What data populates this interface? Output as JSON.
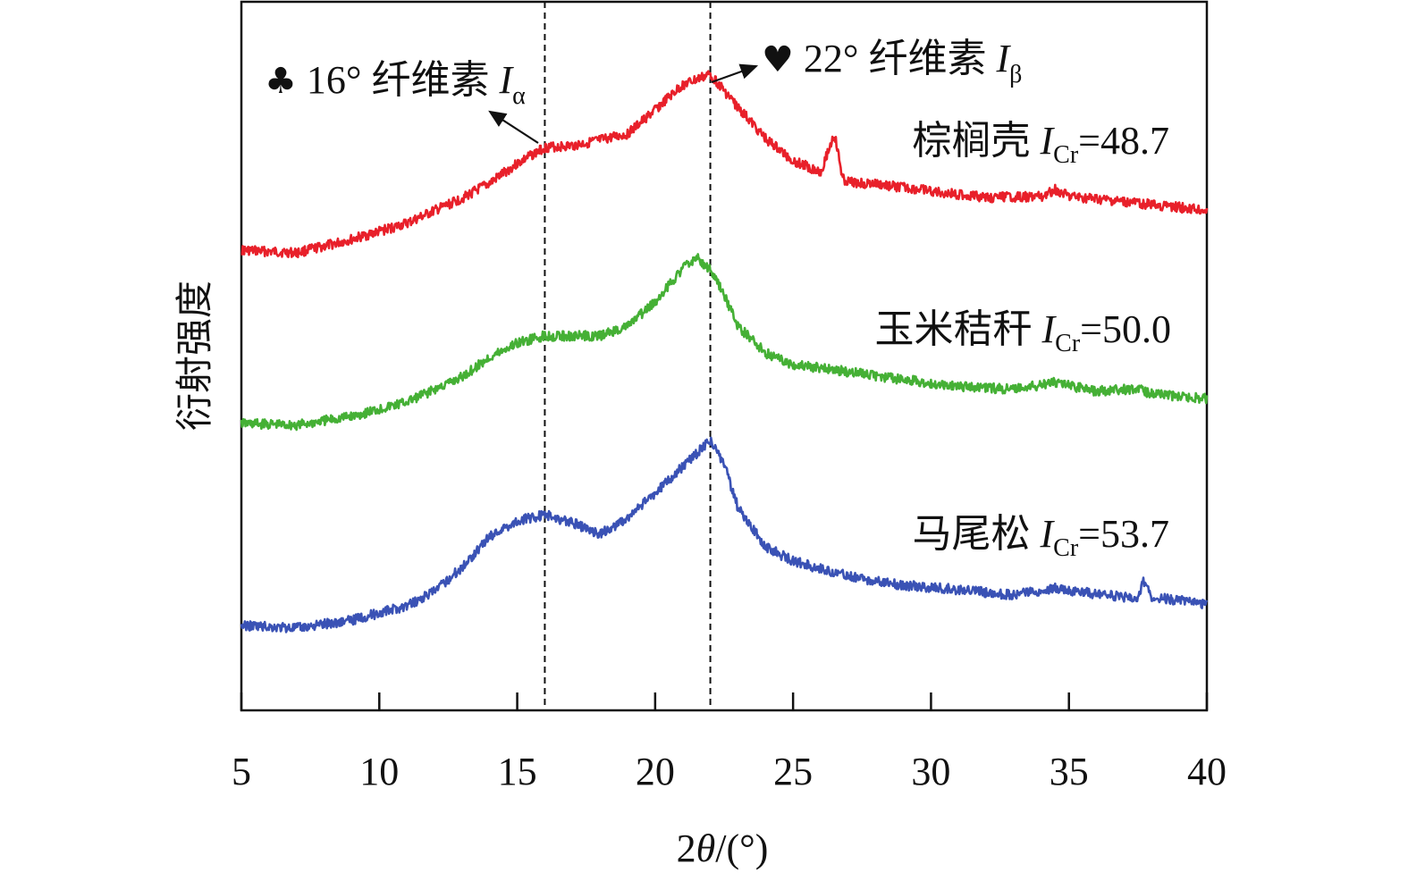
{
  "chart_data": {
    "type": "line",
    "xlabel_prefix": "2",
    "xlabel_var": "θ",
    "xlabel_suffix": "/(°)",
    "ylabel": "衍射强度",
    "xlim": [
      5,
      40
    ],
    "x_ticks": [
      "5",
      "10",
      "15",
      "20",
      "25",
      "30",
      "35",
      "40"
    ],
    "y_ticks_shown": false,
    "grid": false,
    "legend": "inline labels at right of each curve",
    "reference_lines_x": [
      16,
      22
    ],
    "annotations": [
      {
        "symbol": "♣",
        "text": "16° 纤维素 ",
        "var": "I",
        "sub": "α",
        "points_to_x": 16
      },
      {
        "symbol": "♥",
        "text": "22° 纤维素 ",
        "var": "I",
        "sub": "β",
        "points_to_x": 22
      }
    ],
    "series": [
      {
        "name": "棕榈壳",
        "index_var": "I",
        "index_sub": "Cr",
        "index_value": "=48.7",
        "color": "#e8202a",
        "points": [
          [
            5,
            280
          ],
          [
            7,
            283
          ],
          [
            9,
            268
          ],
          [
            11,
            250
          ],
          [
            13,
            222
          ],
          [
            14,
            205
          ],
          [
            15,
            183
          ],
          [
            16,
            165
          ],
          [
            17,
            163
          ],
          [
            18,
            157
          ],
          [
            19,
            150
          ],
          [
            20,
            123
          ],
          [
            21,
            95
          ],
          [
            22,
            83
          ],
          [
            23,
            120
          ],
          [
            24,
            155
          ],
          [
            25,
            180
          ],
          [
            26,
            192
          ],
          [
            26.5,
            150
          ],
          [
            26.8,
            200
          ],
          [
            27,
            204
          ],
          [
            28,
            206
          ],
          [
            30,
            214
          ],
          [
            32,
            221
          ],
          [
            34,
            220
          ],
          [
            34.5,
            212
          ],
          [
            35,
            220
          ],
          [
            37,
            226
          ],
          [
            39,
            232
          ],
          [
            40,
            236
          ]
        ]
      },
      {
        "name": "玉米秸秆",
        "index_var": "I",
        "index_sub": "Cr",
        "index_value": "=50.0",
        "color": "#45b035",
        "points": [
          [
            5,
            474
          ],
          [
            7,
            476
          ],
          [
            9,
            466
          ],
          [
            11,
            450
          ],
          [
            13,
            422
          ],
          [
            14,
            400
          ],
          [
            15,
            384
          ],
          [
            16,
            376
          ],
          [
            17,
            376
          ],
          [
            18,
            376
          ],
          [
            19,
            365
          ],
          [
            20,
            338
          ],
          [
            21,
            300
          ],
          [
            21.5,
            288
          ],
          [
            22,
            302
          ],
          [
            22.5,
            330
          ],
          [
            23,
            365
          ],
          [
            24,
            395
          ],
          [
            25,
            408
          ],
          [
            27,
            416
          ],
          [
            29,
            425
          ],
          [
            31,
            432
          ],
          [
            33,
            436
          ],
          [
            34.5,
            428
          ],
          [
            36,
            438
          ],
          [
            37.5,
            435
          ],
          [
            38,
            441
          ],
          [
            40,
            446
          ]
        ]
      },
      {
        "name": "马尾松",
        "index_var": "I",
        "index_sub": "Cr",
        "index_value": "=53.7",
        "color": "#3a52b5",
        "points": [
          [
            5,
            700
          ],
          [
            7,
            703
          ],
          [
            9,
            694
          ],
          [
            11,
            678
          ],
          [
            12,
            662
          ],
          [
            13,
            635
          ],
          [
            14,
            600
          ],
          [
            15,
            583
          ],
          [
            16,
            576
          ],
          [
            17,
            585
          ],
          [
            18,
            598
          ],
          [
            19,
            580
          ],
          [
            20,
            552
          ],
          [
            21,
            522
          ],
          [
            22,
            493
          ],
          [
            22.5,
            520
          ],
          [
            23,
            568
          ],
          [
            24,
            612
          ],
          [
            25,
            628
          ],
          [
            27,
            645
          ],
          [
            29,
            655
          ],
          [
            31,
            660
          ],
          [
            33,
            666
          ],
          [
            34.5,
            658
          ],
          [
            36,
            665
          ],
          [
            37.5,
            670
          ],
          [
            37.7,
            652
          ],
          [
            38,
            668
          ],
          [
            40,
            676
          ]
        ]
      }
    ]
  }
}
